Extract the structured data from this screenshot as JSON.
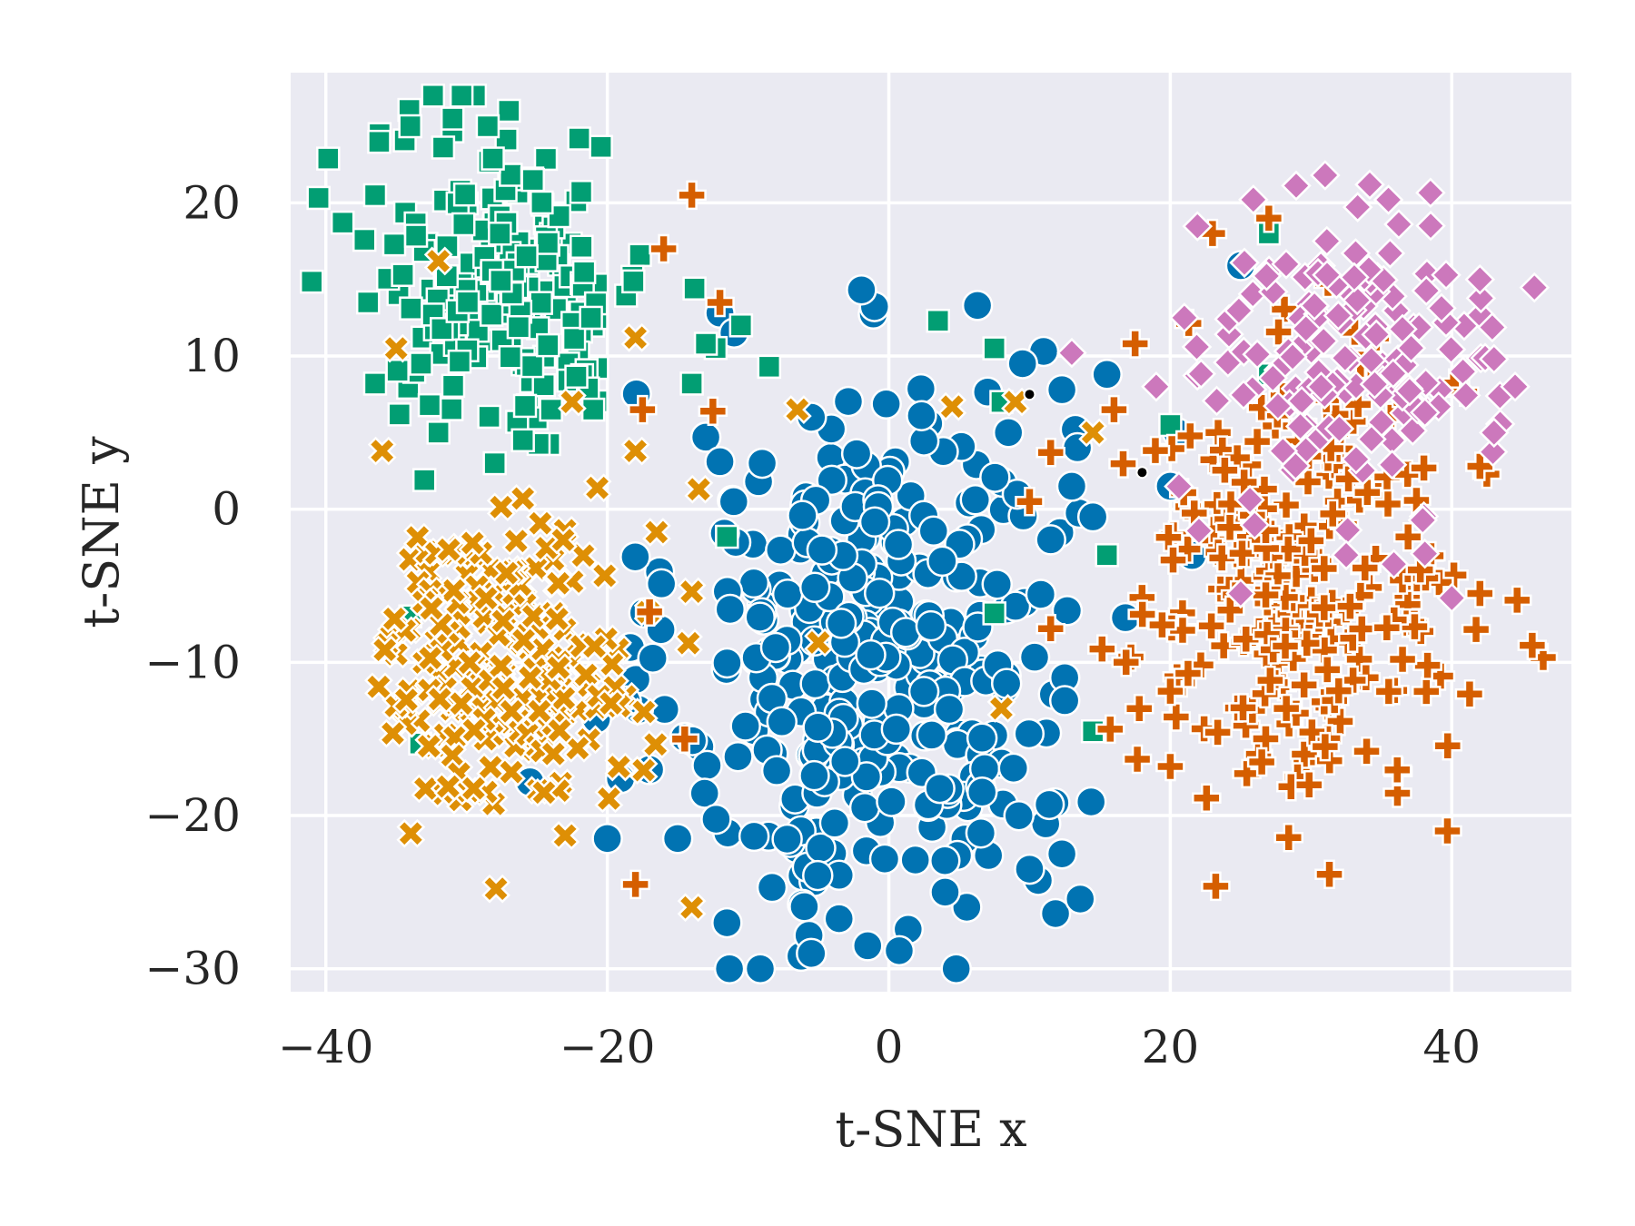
{
  "chart_data": {
    "type": "scatter",
    "title": "",
    "xlabel": "t-SNE x",
    "ylabel": "t-SNE y",
    "xlim": [
      -42.5,
      48.5
    ],
    "ylim": [
      -31.5,
      28.5
    ],
    "xticks": [
      -40,
      -20,
      0,
      20,
      40
    ],
    "yticks": [
      -30,
      -20,
      -10,
      0,
      10,
      20
    ],
    "xtick_labels": [
      "−40",
      "−20",
      "0",
      "20",
      "40"
    ],
    "ytick_labels": [
      "−30",
      "−20",
      "−10",
      "0",
      "10",
      "20"
    ],
    "grid": true,
    "legend": "none",
    "colors": {
      "background": "#eaeaf2",
      "grid": "#ffffff",
      "blue": "#0173b2",
      "green": "#029e73",
      "yellow": "#de8f05",
      "orange": "#d55e00",
      "pink": "#cc78bc"
    },
    "series": [
      {
        "marker": "circle",
        "color": "#0173b2",
        "cluster": {
          "cx": -1,
          "cy": -10,
          "sx": 7,
          "sy": 9,
          "n": 360
        },
        "points": [
          [
            25,
            15.9
          ],
          [
            20.5,
            5
          ],
          [
            20,
            1.5
          ],
          [
            6.3,
            13.3
          ],
          [
            -12,
            12.8
          ],
          [
            -11,
            11.5
          ],
          [
            11,
            10.3
          ],
          [
            9.5,
            9.5
          ],
          [
            12.3,
            7.8
          ],
          [
            15.5,
            8.8
          ],
          [
            -25.5,
            -17.8
          ],
          [
            -20,
            -21.5
          ],
          [
            -5.5,
            6
          ],
          [
            -13,
            4.7
          ],
          [
            -12,
            3.1
          ],
          [
            -9,
            3
          ],
          [
            14.5,
            -0.5
          ],
          [
            11.5,
            -2
          ],
          [
            12.5,
            -11
          ],
          [
            12.5,
            -12.5
          ],
          [
            12.3,
            -22.5
          ],
          [
            10,
            -23.5
          ],
          [
            4,
            -25
          ],
          [
            -5.5,
            -29
          ],
          [
            -1.5,
            -28.5
          ],
          [
            -17,
            -17
          ],
          [
            -15,
            -21.5
          ],
          [
            -11.5,
            -27
          ],
          [
            13,
            1.5
          ],
          [
            8.5,
            5
          ]
        ]
      },
      {
        "marker": "square",
        "color": "#029e73",
        "cluster": {
          "cx": -27,
          "cy": 15,
          "sx": 5,
          "sy": 5,
          "n": 190
        },
        "points": [
          [
            -34,
            25
          ],
          [
            -31,
            25.5
          ],
          [
            -28.5,
            25
          ],
          [
            -22,
            24.2
          ],
          [
            -36.5,
            20.5
          ],
          [
            -37,
            13.5
          ],
          [
            -36.5,
            8.2
          ],
          [
            -33,
            1.9
          ],
          [
            -34,
            -7
          ],
          [
            -33.3,
            -15.3
          ],
          [
            14.5,
            -14.5
          ],
          [
            15.5,
            -3
          ],
          [
            -10.5,
            12
          ],
          [
            -13,
            10.8
          ],
          [
            -14,
            8.2
          ],
          [
            -8.5,
            9.3
          ],
          [
            -24,
            6.5
          ],
          [
            -21,
            6.5
          ],
          [
            -32,
            5
          ],
          [
            -28,
            3
          ],
          [
            -26,
            4.5
          ],
          [
            -11.5,
            -1.8
          ],
          [
            3.5,
            12.3
          ],
          [
            7.5,
            10.5
          ],
          [
            8,
            7
          ],
          [
            20,
            5.5
          ],
          [
            27,
            8.8
          ],
          [
            27,
            18
          ],
          [
            29.5,
            5.2
          ],
          [
            7.5,
            -6.8
          ]
        ]
      },
      {
        "marker": "x",
        "color": "#de8f05",
        "cluster": {
          "cx": -27,
          "cy": -10,
          "sx": 4.5,
          "sy": 4.5,
          "n": 210
        },
        "points": [
          [
            -36,
            3.8
          ],
          [
            -35,
            10.5
          ],
          [
            -32,
            16.2
          ],
          [
            -18,
            11.2
          ],
          [
            -22.5,
            7
          ],
          [
            -18,
            3.8
          ],
          [
            -13.5,
            1.3
          ],
          [
            -26,
            0.7
          ],
          [
            -16.5,
            -1.5
          ],
          [
            -5,
            -8.7
          ],
          [
            8,
            -13
          ],
          [
            -24.5,
            -18.5
          ],
          [
            -23,
            -21.3
          ],
          [
            -14,
            -26
          ],
          [
            -6.5,
            6.5
          ],
          [
            4.5,
            6.7
          ],
          [
            14.5,
            5
          ],
          [
            9,
            7
          ]
        ]
      },
      {
        "marker": "plus",
        "color": "#d55e00",
        "cluster": {
          "cx": 29,
          "cy": -5,
          "sx": 6,
          "sy": 7,
          "n": 260
        },
        "points": [
          [
            -14,
            20.5
          ],
          [
            -16,
            17
          ],
          [
            -12,
            13.5
          ],
          [
            -17.5,
            6.5
          ],
          [
            -12.5,
            6.4
          ],
          [
            -17,
            -6.7
          ],
          [
            -18,
            -24.5
          ],
          [
            -14.5,
            -15
          ],
          [
            11.5,
            3.7
          ],
          [
            11.5,
            -7.8
          ],
          [
            23,
            18
          ],
          [
            27,
            19
          ],
          [
            36.5,
            -9.8
          ],
          [
            42,
            2.8
          ],
          [
            20,
            -16.8
          ],
          [
            26.5,
            -16.5
          ],
          [
            31,
            -15.5
          ],
          [
            42,
            -5.5
          ],
          [
            10,
            0.5
          ],
          [
            16,
            6.5
          ],
          [
            17.5,
            10.8
          ]
        ]
      },
      {
        "marker": "diamond",
        "color": "#cc78bc",
        "cluster": {
          "cx": 33,
          "cy": 10,
          "sx": 5,
          "sy": 5,
          "n": 150
        },
        "points": [
          [
            31,
            21.8
          ],
          [
            35.5,
            20.2
          ],
          [
            38.5,
            18.5
          ],
          [
            42,
            15
          ],
          [
            43,
            9.8
          ],
          [
            44.5,
            8
          ],
          [
            43,
            5
          ],
          [
            21,
            12.5
          ],
          [
            19,
            8
          ],
          [
            28,
            3.8
          ],
          [
            32.5,
            -3
          ],
          [
            25,
            -5.5
          ],
          [
            40,
            -5.8
          ],
          [
            13,
            10.2
          ]
        ]
      },
      {
        "marker": "dot",
        "color": "#000000",
        "cluster": null,
        "points": [
          [
            10,
            7.5
          ],
          [
            18,
            2.4
          ]
        ]
      }
    ]
  }
}
